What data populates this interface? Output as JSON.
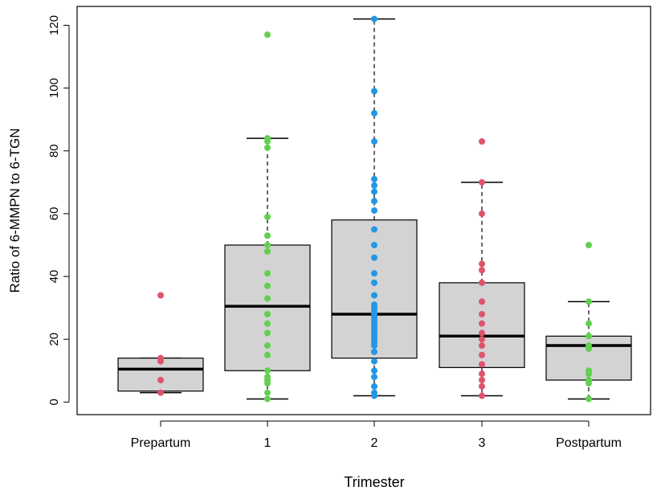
{
  "chart_data": {
    "type": "box",
    "title": "",
    "xlabel": "Trimester",
    "ylabel": "Ratio of 6-MMPN to 6-TGN",
    "ylim": [
      -4,
      126
    ],
    "yticks": [
      0,
      20,
      40,
      60,
      80,
      100,
      120
    ],
    "grid": false,
    "legend": "none",
    "colors": {
      "box_fill": "#d3d3d3",
      "box_stroke": "#000000",
      "median": "#000000",
      "whisker": "#000000",
      "red": "#df536b",
      "green": "#61d04f",
      "blue": "#2297e6"
    },
    "categories": [
      "Prepartum",
      "1",
      "2",
      "3",
      "Postpartum"
    ],
    "boxes": [
      {
        "category": "Prepartum",
        "q1": 3.5,
        "median": 10.5,
        "q3": 14,
        "whisker_low": 3,
        "whisker_high": 14,
        "point_color": "red",
        "points": [
          34,
          14,
          13,
          7,
          3
        ]
      },
      {
        "category": "1",
        "q1": 10,
        "median": 30.5,
        "q3": 50,
        "whisker_low": 1,
        "whisker_high": 84,
        "point_color": "green",
        "points": [
          117,
          84,
          83,
          81,
          59,
          53,
          50,
          48,
          41,
          37,
          33,
          28,
          25,
          22,
          18,
          15,
          10,
          8,
          7,
          6,
          3,
          1
        ]
      },
      {
        "category": "2",
        "q1": 14,
        "median": 28,
        "q3": 58,
        "whisker_low": 2,
        "whisker_high": 122,
        "point_color": "blue",
        "points": [
          122,
          99,
          92,
          83,
          71,
          69,
          67,
          64,
          61,
          55,
          50,
          46,
          41,
          38,
          34,
          31,
          30,
          29,
          28,
          27,
          26,
          25,
          24,
          23,
          22,
          21,
          20,
          19,
          18,
          16,
          13,
          10,
          8,
          5,
          3,
          2
        ]
      },
      {
        "category": "3",
        "q1": 11,
        "median": 21,
        "q3": 38,
        "whisker_low": 2,
        "whisker_high": 70,
        "point_color": "red",
        "points": [
          83,
          70,
          60,
          44,
          42,
          38,
          32,
          28,
          25,
          22,
          20,
          18,
          15,
          12,
          9,
          7,
          5,
          2
        ]
      },
      {
        "category": "Postpartum",
        "q1": 7,
        "median": 18,
        "q3": 21,
        "whisker_low": 1,
        "whisker_high": 32,
        "point_color": "green",
        "points": [
          50,
          32,
          25,
          21,
          18,
          17,
          10,
          9,
          7,
          6,
          1
        ]
      }
    ]
  }
}
